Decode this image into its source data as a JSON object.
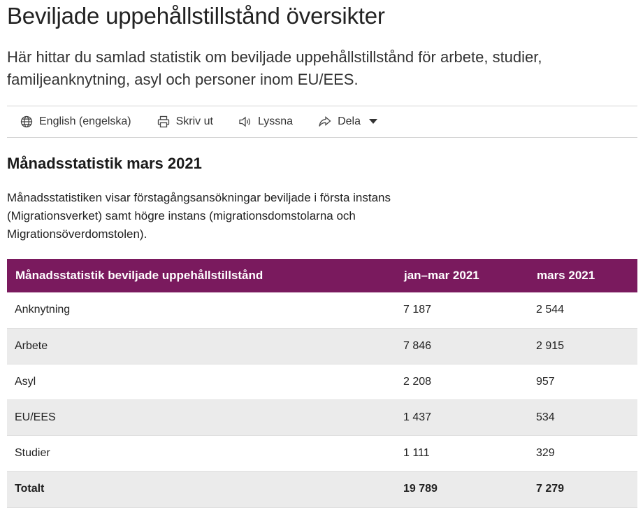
{
  "page": {
    "title": "Beviljade uppehållstillstånd översikter",
    "intro": "Här hittar du samlad statistik om beviljade uppehållstillstånd för arbete, studier, familjeanknytning, asyl och personer inom EU/EES."
  },
  "toolbar": {
    "items": [
      {
        "label": "English (engelska)",
        "icon": "globe-icon"
      },
      {
        "label": "Skriv ut",
        "icon": "printer-icon"
      },
      {
        "label": "Lyssna",
        "icon": "speaker-icon"
      },
      {
        "label": "Dela",
        "icon": "share-icon"
      }
    ]
  },
  "section": {
    "title": "Månadsstatistik mars 2021",
    "description": "Månadsstatistiken visar förstagångsansökningar beviljade i första instans (Migrationsverket) samt högre instans (migrationsdomstolarna och Migrationsöverdomstolen)."
  },
  "table": {
    "header_color": "#7a1a5e",
    "columns": [
      "Månadsstatistik beviljade uppehållstillstånd",
      "jan–mar 2021",
      "mars 2021"
    ],
    "rows": [
      [
        "Anknytning",
        "7 187",
        "2 544"
      ],
      [
        "Arbete",
        "7 846",
        "2 915"
      ],
      [
        "Asyl",
        "2 208",
        "957"
      ],
      [
        "EU/EES",
        "1 437",
        "534"
      ],
      [
        "Studier",
        "1 111",
        "329"
      ]
    ],
    "total": [
      "Totalt",
      "19 789",
      "7 279"
    ]
  }
}
